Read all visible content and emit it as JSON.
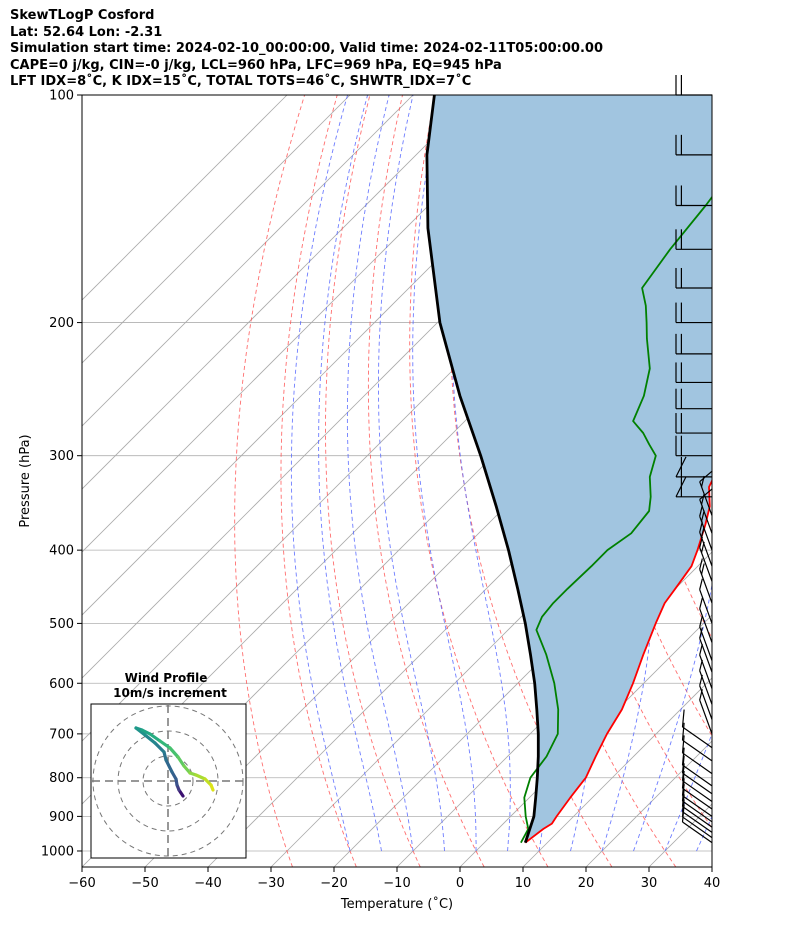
{
  "header": {
    "line1": "SkewTLogP Cosford",
    "line2": "Lat: 52.64   Lon: -2.31",
    "line3": "Simulation start time: 2024-02-10_00:00:00, Valid time: 2024-02-11T05:00:00.00",
    "line4": "CAPE=0 j/kg, CIN=-0 j/kg, LCL=960 hPa, LFC=969 hPa, EQ=945 hPa",
    "line5": "LFT IDX=8˚C, K IDX=15˚C, TOTAL TOTS=46˚C, SHWTR_IDX=7˚C"
  },
  "chart_data": {
    "type": "line",
    "xlabel": "Temperature (˚C)",
    "ylabel": "Pressure (hPa)",
    "xlim": [
      -60,
      40
    ],
    "ylim": [
      1050,
      100
    ],
    "y_log": true,
    "skew": "45 degrees",
    "grid": true,
    "x_ticks": [
      -60,
      -50,
      -40,
      -30,
      -20,
      -10,
      0,
      10,
      20,
      30,
      40
    ],
    "y_ticks": [
      1000,
      900,
      800,
      700,
      600,
      500,
      400,
      300,
      200,
      100
    ],
    "series": [
      {
        "role": "temperature",
        "color": "#ff0000",
        "points": [
          [
            975,
            6.5
          ],
          [
            935,
            7.2
          ],
          [
            920,
            7.7
          ],
          [
            900,
            7.3
          ],
          [
            850,
            6.5
          ],
          [
            800,
            5.8
          ],
          [
            750,
            4.0
          ],
          [
            700,
            2.2
          ],
          [
            650,
            0.7
          ],
          [
            600,
            -1.7
          ],
          [
            550,
            -4.6
          ],
          [
            500,
            -7.6
          ],
          [
            470,
            -9.4
          ],
          [
            450,
            -10.0
          ],
          [
            420,
            -11.0
          ],
          [
            400,
            -12.6
          ],
          [
            370,
            -15.4
          ],
          [
            350,
            -17.6
          ],
          [
            330,
            -20.8
          ],
          [
            320,
            -21.6
          ],
          [
            310,
            -21.5
          ],
          [
            290,
            -21.5
          ],
          [
            270,
            -21.6
          ],
          [
            250,
            -21.4
          ],
          [
            230,
            -20.8
          ],
          [
            210,
            -20.8
          ],
          [
            200,
            -20.6
          ],
          [
            180,
            -19.7
          ],
          [
            160,
            -18.6
          ],
          [
            140,
            -17.8
          ],
          [
            120,
            -16.3
          ],
          [
            100,
            -14.9
          ]
        ]
      },
      {
        "role": "dewpoint",
        "color": "#008000",
        "points": [
          [
            975,
            5.8
          ],
          [
            935,
            4.8
          ],
          [
            900,
            2.4
          ],
          [
            850,
            -0.8
          ],
          [
            800,
            -3.0
          ],
          [
            750,
            -3.8
          ],
          [
            700,
            -5.6
          ],
          [
            650,
            -9.4
          ],
          [
            600,
            -14.2
          ],
          [
            550,
            -20.0
          ],
          [
            510,
            -25.5
          ],
          [
            490,
            -26.7
          ],
          [
            470,
            -27.1
          ],
          [
            450,
            -27.1
          ],
          [
            420,
            -26.9
          ],
          [
            400,
            -26.9
          ],
          [
            380,
            -25.8
          ],
          [
            355,
            -26.5
          ],
          [
            340,
            -28.5
          ],
          [
            320,
            -31.8
          ],
          [
            300,
            -34.2
          ],
          [
            290,
            -37.0
          ],
          [
            280,
            -39.8
          ],
          [
            270,
            -43.3
          ],
          [
            250,
            -45.6
          ],
          [
            230,
            -49.0
          ],
          [
            210,
            -54.2
          ],
          [
            200,
            -56.8
          ],
          [
            190,
            -59.6
          ],
          [
            180,
            -63.0
          ],
          [
            160,
            -64.7
          ],
          [
            140,
            -66.0
          ],
          [
            120,
            -68.0
          ],
          [
            100,
            -71.6
          ]
        ]
      },
      {
        "role": "parcel",
        "color": "#000000",
        "points": [
          [
            975,
            6.5
          ],
          [
            900,
            3.7
          ],
          [
            850,
            1.0
          ],
          [
            800,
            -1.9
          ],
          [
            750,
            -5.1
          ],
          [
            700,
            -8.7
          ],
          [
            650,
            -12.8
          ],
          [
            600,
            -17.3
          ],
          [
            550,
            -22.5
          ],
          [
            500,
            -28.3
          ],
          [
            450,
            -35.0
          ],
          [
            400,
            -42.6
          ],
          [
            350,
            -51.5
          ],
          [
            300,
            -62.0
          ],
          [
            250,
            -74.8
          ],
          [
            200,
            -89.6
          ],
          [
            150,
            -106.5
          ],
          [
            120,
            -118.3
          ],
          [
            100,
            -126.6
          ]
        ]
      }
    ],
    "cape_shading_color": "#a1c5e0",
    "wind_barbs": {
      "color": "#000000",
      "levels_hpa": [
        975,
        960,
        945,
        930,
        915,
        900,
        880,
        860,
        840,
        820,
        790,
        760,
        730,
        700,
        670,
        640,
        610,
        580,
        560,
        530,
        500,
        470,
        440,
        420,
        400,
        380,
        360,
        340,
        320,
        300,
        280,
        260,
        240,
        220,
        200,
        180,
        160,
        140,
        120,
        100
      ]
    },
    "inset": {
      "title_line1": "Wind Profile",
      "title_line2": "10m/s increment"
    }
  }
}
